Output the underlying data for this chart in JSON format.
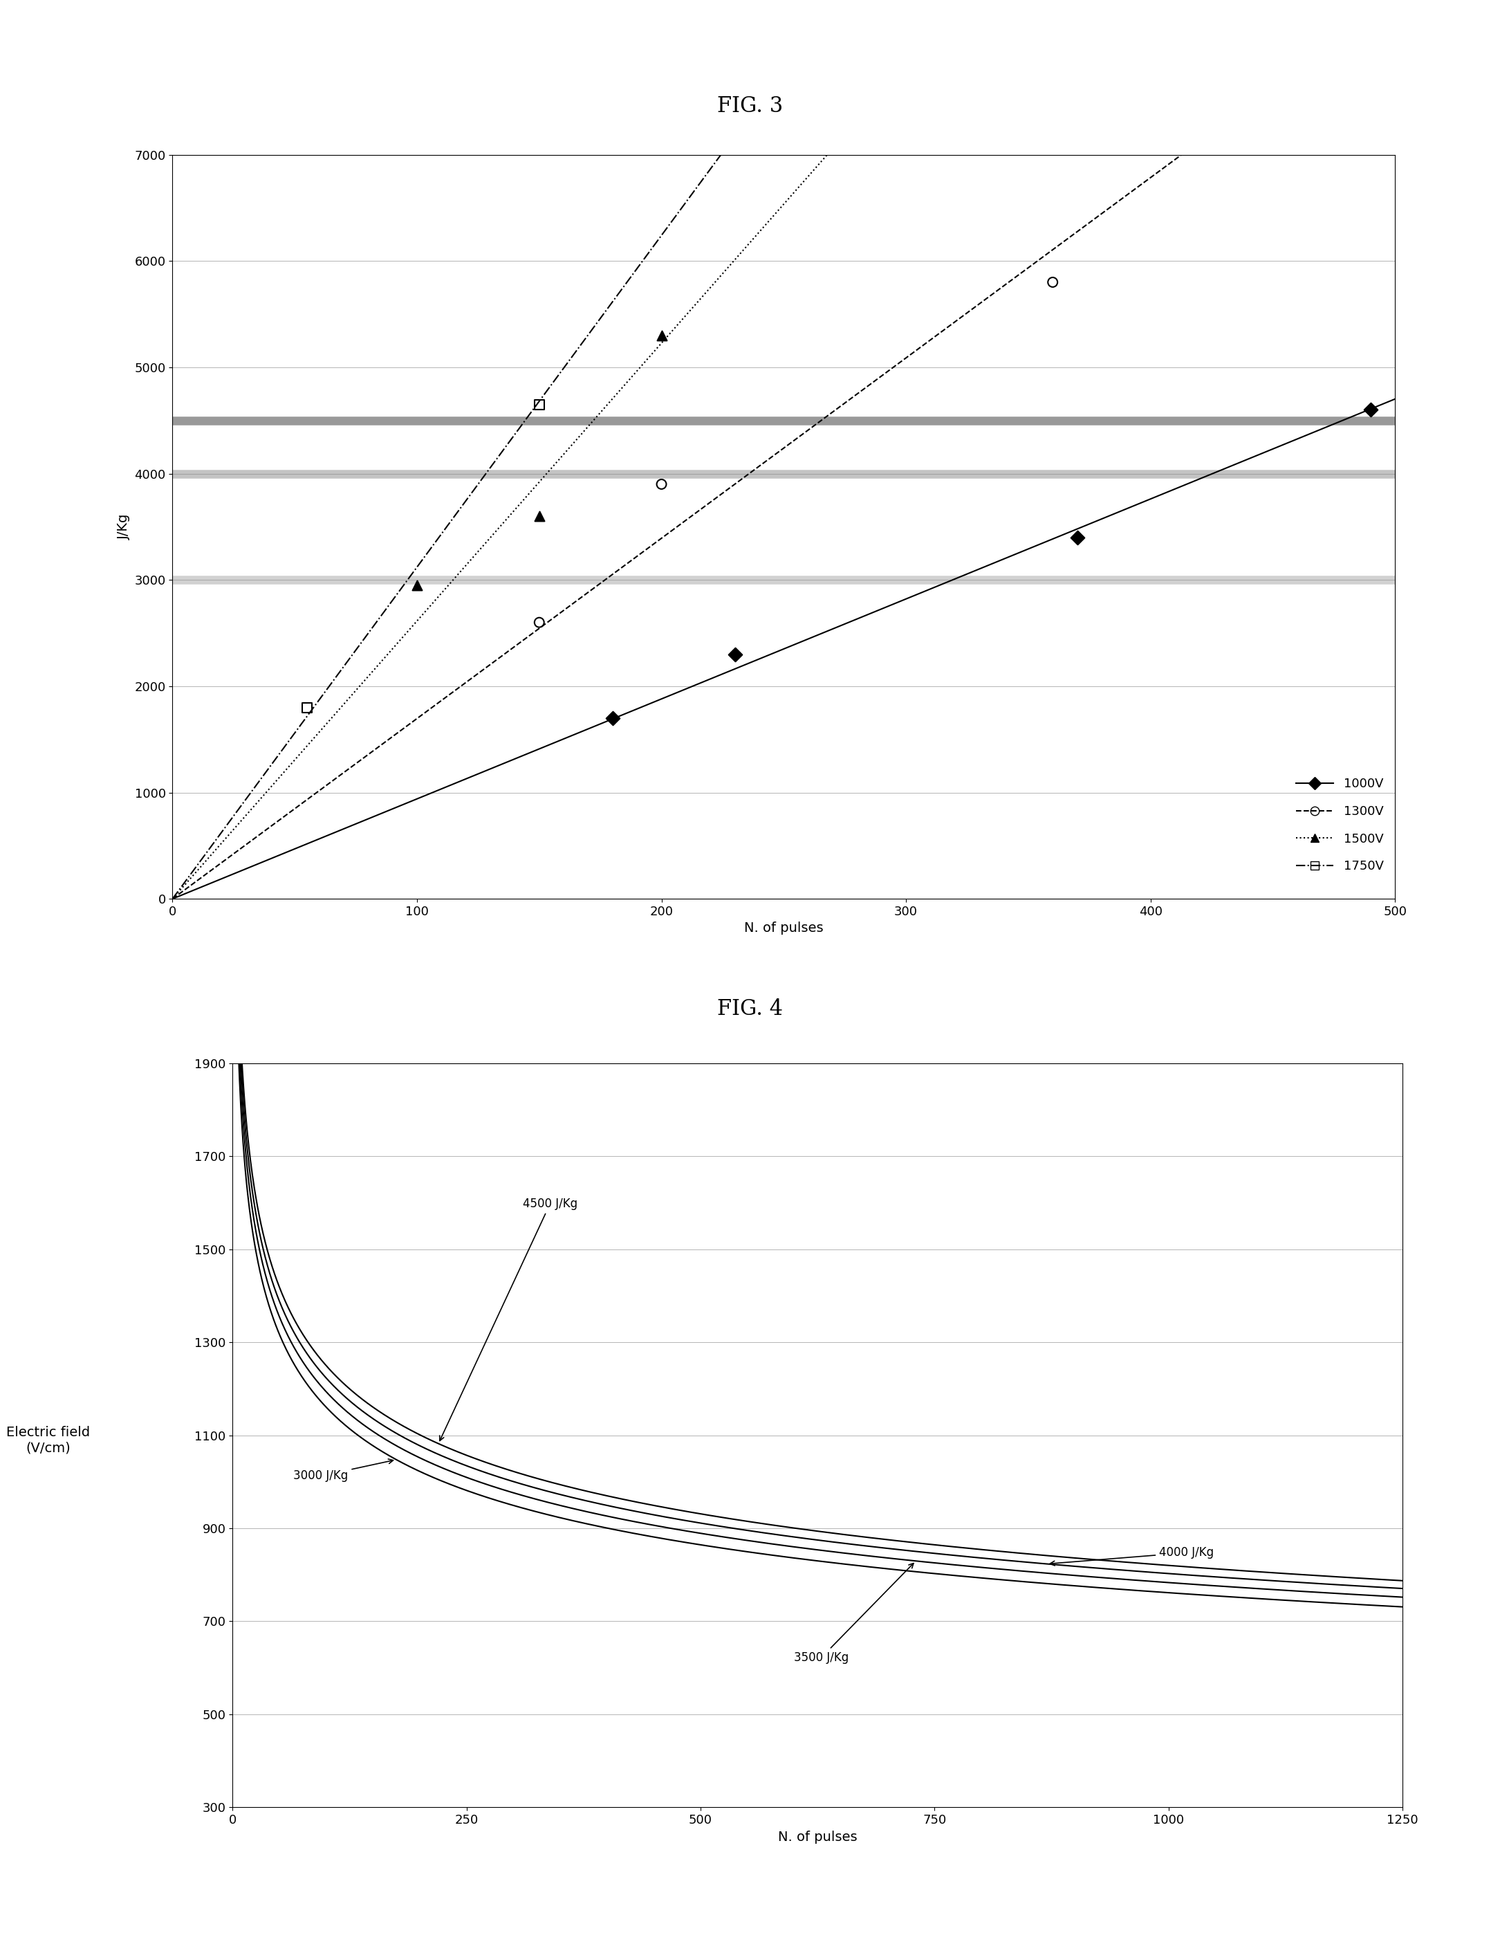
{
  "fig3_title": "FIG. 3",
  "fig4_title": "FIG. 4",
  "fig3_xlabel": "N. of pulses",
  "fig3_ylabel": "J/Kg",
  "fig3_xlim": [
    0,
    500
  ],
  "fig3_ylim": [
    0,
    7000
  ],
  "fig3_xticks": [
    0,
    100,
    200,
    300,
    400,
    500
  ],
  "fig3_yticks": [
    0,
    1000,
    2000,
    3000,
    4000,
    5000,
    6000,
    7000
  ],
  "series_1000V": {
    "x": [
      180,
      230,
      370,
      490
    ],
    "y": [
      1700,
      2300,
      3400,
      4600
    ]
  },
  "series_1300V": {
    "x": [
      150,
      200,
      360
    ],
    "y": [
      2600,
      3900,
      5800
    ]
  },
  "series_1500V": {
    "x": [
      100,
      150,
      200
    ],
    "y": [
      2950,
      3600,
      5300
    ]
  },
  "series_1750V": {
    "x": [
      55,
      150
    ],
    "y": [
      1800,
      4650
    ]
  },
  "hline_y": [
    3000,
    4000,
    4500
  ],
  "hline_lw": [
    9,
    9,
    9
  ],
  "hline_alpha": [
    0.45,
    0.5,
    0.6
  ],
  "hline_color": [
    "#999999",
    "#888888",
    "#555555"
  ],
  "linestyles_fig3": [
    "-",
    "--",
    ":",
    "-."
  ],
  "markers_fig3": [
    "D",
    "o",
    "^",
    "s"
  ],
  "marker_filled": [
    true,
    false,
    true,
    false
  ],
  "labels_fig3": [
    "1000V",
    "1300V",
    "1500V",
    "1750V"
  ],
  "fig4_xlabel": "N. of pulses",
  "fig4_xlim": [
    0,
    1250
  ],
  "fig4_ylim": [
    300,
    1900
  ],
  "fig4_xticks": [
    0,
    250,
    500,
    750,
    1000,
    1250
  ],
  "fig4_yticks": [
    300,
    500,
    700,
    900,
    1100,
    1300,
    1500,
    1700,
    1900
  ],
  "fig4_energies": [
    3000,
    3500,
    4000,
    4500
  ],
  "fig4_scale": 14142.0,
  "bg_color": "#ffffff",
  "grid_color": "#aaaaaa",
  "title_fontsize": 22,
  "label_fontsize": 14,
  "tick_fontsize": 13,
  "legend_fontsize": 13,
  "annot_fontsize": 12
}
